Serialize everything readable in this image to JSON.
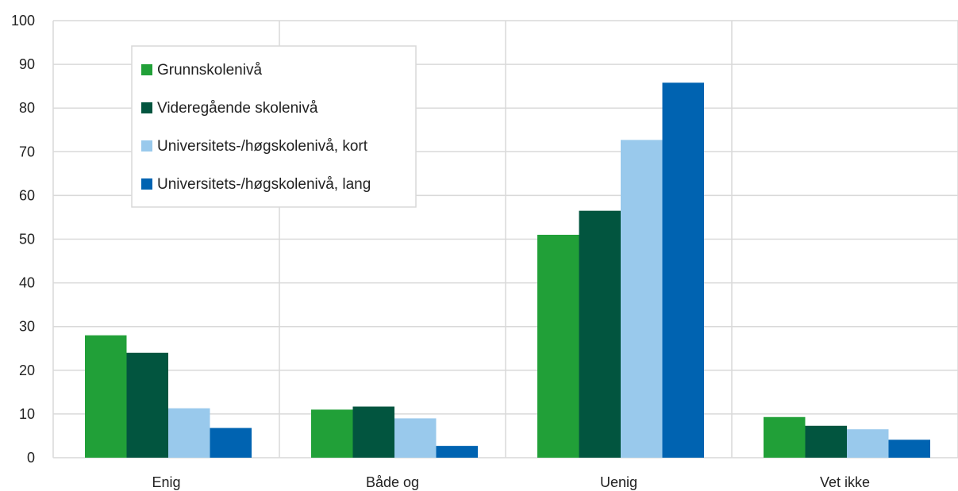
{
  "chart_data": {
    "type": "bar",
    "title": "",
    "xlabel": "",
    "ylabel": "",
    "categories": [
      "Enig",
      "Både og",
      "Uenig",
      "Vet ikke"
    ],
    "ylim": [
      0,
      100
    ],
    "yticks": [
      0,
      10,
      20,
      30,
      40,
      50,
      60,
      70,
      80,
      90,
      100
    ],
    "grid": true,
    "legend_position": "top-left",
    "series": [
      {
        "name": "Grunnskolenivå",
        "color": "#21a038",
        "values": [
          28,
          11,
          51,
          9.3
        ]
      },
      {
        "name": "Videregående skolenivå",
        "color": "#02553f",
        "values": [
          24,
          11.7,
          56.5,
          7.3
        ]
      },
      {
        "name": "Universitets-/høgskolenivå, kort",
        "color": "#99c9ec",
        "values": [
          11.3,
          9,
          72.7,
          6.5
        ]
      },
      {
        "name": "Universitets-/høgskolenivå, lang",
        "color": "#0063b1",
        "values": [
          6.8,
          2.7,
          85.8,
          4.1
        ]
      }
    ]
  }
}
